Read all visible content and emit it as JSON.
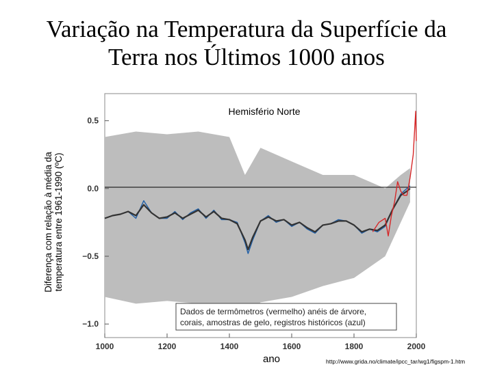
{
  "slide_title": [
    "Variação na Temperatura da Superfície da",
    "Terra nos Últimos 1000 anos"
  ],
  "ylabel": [
    "Diferença com relação à média da",
    "temperatura entre 1961-1990 (ºC)"
  ],
  "xlabel": "ano",
  "source": "http://www.grida.no/climate/ipcc_tar/wg1/figspm-1.htm",
  "colors": {
    "uncertainty": "#bdbdbd",
    "proxy": "#1f5fa8",
    "smooth": "#333333",
    "thermometer": "#d62728",
    "zero_line": "#000000"
  },
  "chart_data": {
    "type": "line",
    "title": "Hemisfério Norte",
    "xlim": [
      1000,
      2000
    ],
    "ylim": [
      -1.1,
      0.7
    ],
    "x_ticks": [
      {
        "value": 1000,
        "label": "1000"
      },
      {
        "value": 1200,
        "label": "1200"
      },
      {
        "value": 1400,
        "label": "1400"
      },
      {
        "value": 1600,
        "label": "1600"
      },
      {
        "value": 1800,
        "label": "1800"
      },
      {
        "value": 2000,
        "label": "2000"
      }
    ],
    "y_ticks": [
      {
        "value": 0.5,
        "label": "0.5"
      },
      {
        "value": 0.0,
        "label": "0.0"
      },
      {
        "value": -0.5,
        "label": "−0.5"
      },
      {
        "value": -1.0,
        "label": "−1.0"
      }
    ],
    "annotation": [
      "Dados de termômetros (vermelho) anéis de árvore,",
      "corais, amostras de gelo, registros históricos (azul)"
    ],
    "series": [
      {
        "color": "#1f5fa8",
        "x": [
          1000,
          1025,
          1050,
          1075,
          1100,
          1125,
          1150,
          1175,
          1200,
          1225,
          1250,
          1275,
          1300,
          1325,
          1350,
          1375,
          1400,
          1425,
          1450,
          1460,
          1475,
          1500,
          1525,
          1550,
          1575,
          1600,
          1625,
          1650,
          1675,
          1700,
          1725,
          1750,
          1775,
          1800,
          1825,
          1850,
          1875,
          1900,
          1925,
          1950,
          1970,
          1980
        ],
        "y": [
          -0.22,
          -0.2,
          -0.19,
          -0.17,
          -0.22,
          -0.09,
          -0.18,
          -0.22,
          -0.22,
          -0.17,
          -0.23,
          -0.18,
          -0.15,
          -0.22,
          -0.16,
          -0.23,
          -0.23,
          -0.25,
          -0.4,
          -0.48,
          -0.38,
          -0.24,
          -0.2,
          -0.25,
          -0.23,
          -0.28,
          -0.25,
          -0.3,
          -0.33,
          -0.27,
          -0.26,
          -0.23,
          -0.24,
          -0.27,
          -0.33,
          -0.3,
          -0.32,
          -0.28,
          -0.15,
          -0.04,
          0.0,
          0.02
        ]
      },
      {
        "color": "#333333",
        "x": [
          1000,
          1025,
          1050,
          1075,
          1100,
          1125,
          1150,
          1175,
          1200,
          1225,
          1250,
          1275,
          1300,
          1325,
          1350,
          1375,
          1400,
          1425,
          1450,
          1460,
          1475,
          1500,
          1525,
          1550,
          1575,
          1600,
          1625,
          1650,
          1675,
          1700,
          1725,
          1750,
          1775,
          1800,
          1825,
          1850,
          1875,
          1900,
          1925,
          1950,
          1970,
          1980
        ],
        "y": [
          -0.22,
          -0.2,
          -0.19,
          -0.17,
          -0.2,
          -0.12,
          -0.18,
          -0.22,
          -0.21,
          -0.18,
          -0.22,
          -0.19,
          -0.16,
          -0.21,
          -0.17,
          -0.22,
          -0.23,
          -0.26,
          -0.38,
          -0.45,
          -0.36,
          -0.24,
          -0.21,
          -0.24,
          -0.23,
          -0.27,
          -0.25,
          -0.29,
          -0.32,
          -0.27,
          -0.26,
          -0.24,
          -0.24,
          -0.27,
          -0.32,
          -0.3,
          -0.31,
          -0.27,
          -0.15,
          -0.05,
          -0.02,
          0.0
        ]
      },
      {
        "color": "#d62728",
        "x": [
          1860,
          1880,
          1900,
          1910,
          1920,
          1930,
          1940,
          1950,
          1960,
          1970,
          1980,
          1990,
          1998,
          2000
        ],
        "y": [
          -0.32,
          -0.25,
          -0.22,
          -0.35,
          -0.2,
          -0.1,
          0.05,
          -0.02,
          -0.05,
          -0.05,
          0.08,
          0.25,
          0.57,
          0.35
        ]
      }
    ],
    "uncertainty_band": {
      "x": [
        1000,
        1100,
        1200,
        1300,
        1400,
        1450,
        1500,
        1600,
        1700,
        1800,
        1850,
        1900,
        1950,
        1980
      ],
      "upper": [
        0.38,
        0.42,
        0.4,
        0.42,
        0.38,
        0.1,
        0.3,
        0.2,
        0.1,
        0.1,
        0.05,
        0.0,
        0.1,
        0.15
      ],
      "lower": [
        -0.8,
        -0.85,
        -0.83,
        -0.85,
        -0.86,
        -0.98,
        -0.84,
        -0.8,
        -0.72,
        -0.66,
        -0.58,
        -0.5,
        -0.25,
        -0.1
      ]
    },
    "grid": false,
    "legend": "none"
  }
}
